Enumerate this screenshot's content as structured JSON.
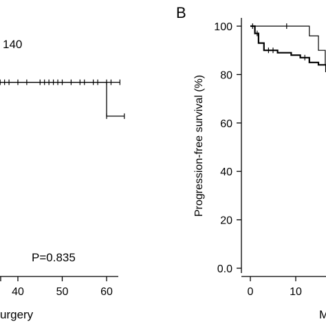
{
  "chart_data": [
    {
      "type": "line",
      "panel": "A",
      "visible_label": "140",
      "pvalue_text": "P=0.835",
      "xlabel": "urgery",
      "xlim": [
        28,
        63
      ],
      "x_ticks": [
        40,
        50,
        60
      ],
      "ylim": [
        0,
        105
      ],
      "grid": false,
      "series": [
        {
          "steps": [
            [
              28,
              97
            ],
            [
              30,
              97
            ],
            [
              30,
              96
            ],
            [
              63,
              96
            ]
          ],
          "censor": [
            30,
            35,
            37,
            38,
            40,
            42,
            45,
            46,
            47,
            48,
            49,
            50,
            52,
            54,
            55,
            57,
            58,
            60,
            61,
            63
          ]
        },
        {
          "steps": [
            [
              28,
              98
            ],
            [
              33,
              98
            ],
            [
              33,
              96
            ],
            [
              60,
              96
            ],
            [
              60,
              79
            ],
            [
              64,
              79
            ]
          ],
          "censor": [
            36,
            60,
            64
          ]
        }
      ]
    },
    {
      "type": "line",
      "panel": "B",
      "panel_label": "B",
      "ylabel": "Progression-free survival (%)",
      "xlabel": "M",
      "xlim": [
        -2,
        20
      ],
      "x_ticks": [
        0,
        10
      ],
      "ylim": [
        -2,
        106
      ],
      "y_ticks": [
        0,
        20,
        40,
        60,
        80,
        100
      ],
      "y_tick_labels": [
        "0.0",
        "20",
        "40",
        "60",
        "80",
        "100"
      ],
      "grid": false,
      "series": [
        {
          "weight": "thin",
          "steps": [
            [
              0,
              100
            ],
            [
              13,
              100
            ],
            [
              13,
              96
            ],
            [
              15,
              96
            ],
            [
              15,
              90
            ],
            [
              16.5,
              90
            ],
            [
              16.5,
              84
            ],
            [
              19,
              84
            ],
            [
              19,
              81
            ],
            [
              21,
              81
            ]
          ],
          "censor": [
            0.5,
            8
          ]
        },
        {
          "weight": "thick",
          "steps": [
            [
              0,
              100
            ],
            [
              1,
              100
            ],
            [
              1,
              97
            ],
            [
              1.8,
              97
            ],
            [
              1.8,
              93
            ],
            [
              3,
              93
            ],
            [
              3,
              90
            ],
            [
              6,
              90
            ],
            [
              6,
              89
            ],
            [
              9,
              89
            ],
            [
              9,
              88
            ],
            [
              11,
              88
            ],
            [
              11,
              87
            ],
            [
              13,
              87
            ],
            [
              13,
              85
            ],
            [
              15,
              85
            ],
            [
              15,
              84
            ],
            [
              18,
              84
            ],
            [
              18,
              81
            ],
            [
              21,
              81
            ]
          ],
          "censor": [
            1.5,
            4,
            5,
            12
          ]
        }
      ]
    }
  ]
}
